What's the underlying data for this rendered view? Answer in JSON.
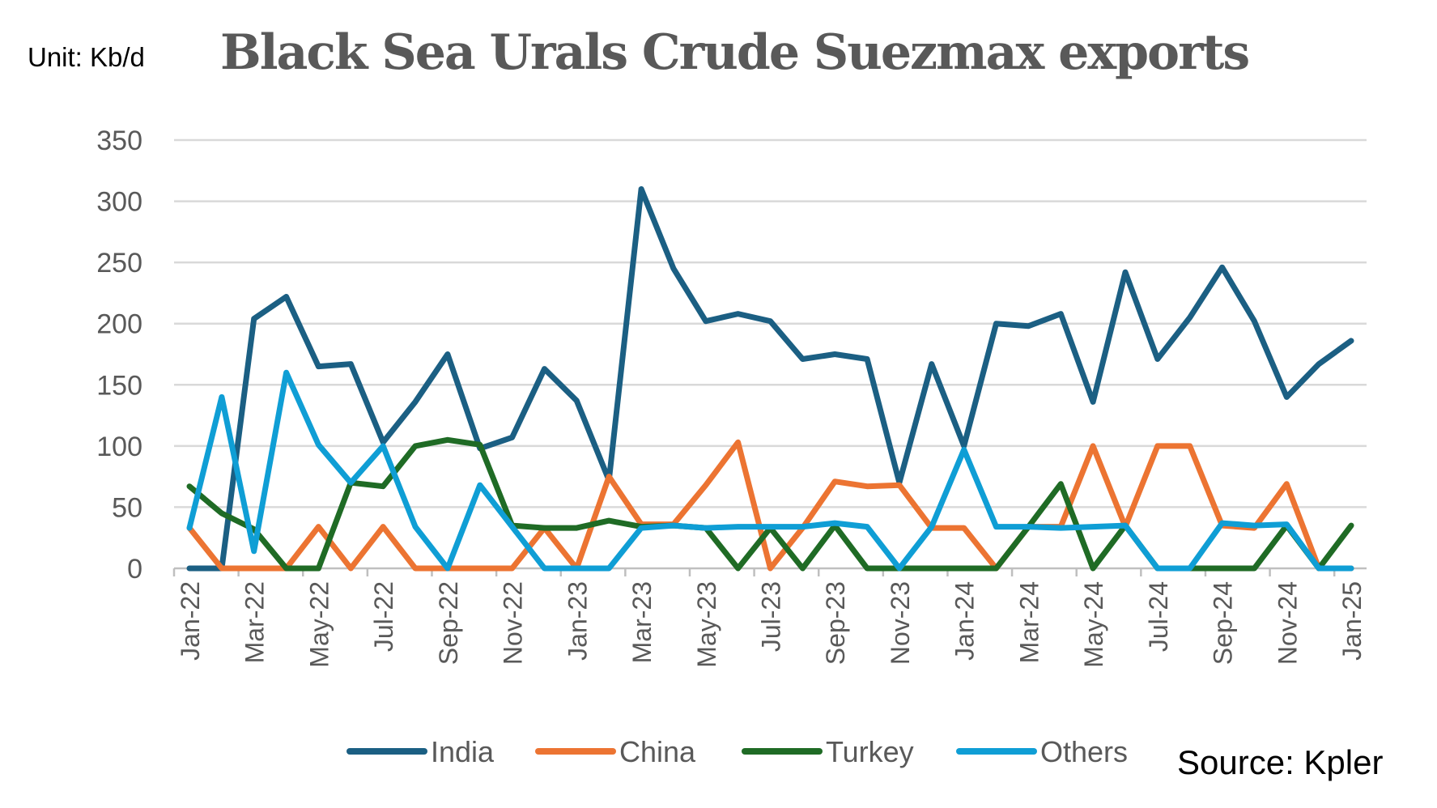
{
  "header": {
    "unit": "Unit: Kb/d",
    "source": "Source: Kpler"
  },
  "chart_data": {
    "type": "line",
    "title": "Black Sea Urals Crude Suezmax exports",
    "xlabel": "",
    "ylabel": "Kb/d",
    "ylim": [
      0,
      350
    ],
    "yticks": [
      0,
      50,
      100,
      150,
      200,
      250,
      300,
      350
    ],
    "grid": true,
    "legend_position": "bottom",
    "x": [
      "Jan-22",
      "Feb-22",
      "Mar-22",
      "Apr-22",
      "May-22",
      "Jun-22",
      "Jul-22",
      "Aug-22",
      "Sep-22",
      "Oct-22",
      "Nov-22",
      "Dec-22",
      "Jan-23",
      "Feb-23",
      "Mar-23",
      "Apr-23",
      "May-23",
      "Jun-23",
      "Jul-23",
      "Aug-23",
      "Sep-23",
      "Oct-23",
      "Nov-23",
      "Dec-23",
      "Jan-24",
      "Feb-24",
      "Mar-24",
      "Apr-24",
      "May-24",
      "Jun-24",
      "Jul-24",
      "Aug-24",
      "Sep-24",
      "Oct-24",
      "Nov-24",
      "Dec-24",
      "Jan-25"
    ],
    "xtick_labels": [
      "Jan-22",
      "Mar-22",
      "May-22",
      "Jul-22",
      "Sep-22",
      "Nov-22",
      "Jan-23",
      "Mar-23",
      "May-23",
      "Jul-23",
      "Sep-23",
      "Nov-23",
      "Jan-24",
      "Mar-24",
      "May-24",
      "Jul-24",
      "Sep-24",
      "Nov-24",
      "Jan-25"
    ],
    "series": [
      {
        "name": "India",
        "color": "#1b5f83",
        "values": [
          0,
          0,
          204,
          222,
          165,
          167,
          103,
          136,
          175,
          98,
          107,
          163,
          137,
          72,
          310,
          245,
          202,
          208,
          202,
          171,
          175,
          171,
          70,
          167,
          100,
          200,
          198,
          208,
          136,
          242,
          171,
          205,
          246,
          202,
          140,
          167,
          186
        ]
      },
      {
        "name": "China",
        "color": "#ec7432",
        "values": [
          33,
          0,
          0,
          0,
          34,
          0,
          34,
          0,
          0,
          0,
          0,
          33,
          0,
          75,
          36,
          36,
          68,
          103,
          0,
          33,
          71,
          67,
          68,
          33,
          33,
          0,
          34,
          34,
          100,
          34,
          100,
          100,
          35,
          33,
          69,
          0,
          0
        ]
      },
      {
        "name": "Turkey",
        "color": "#1f6b25",
        "values": [
          67,
          45,
          32,
          0,
          0,
          70,
          67,
          100,
          105,
          101,
          35,
          33,
          33,
          39,
          34,
          35,
          33,
          0,
          33,
          0,
          35,
          0,
          0,
          0,
          0,
          0,
          34,
          69,
          0,
          35,
          0,
          0,
          0,
          0,
          35,
          0,
          35
        ]
      },
      {
        "name": "Others",
        "color": "#0f9ed5",
        "values": [
          33,
          140,
          14,
          160,
          101,
          70,
          100,
          34,
          0,
          68,
          34,
          0,
          0,
          0,
          33,
          35,
          33,
          34,
          34,
          34,
          37,
          34,
          0,
          34,
          97,
          34,
          34,
          33,
          34,
          35,
          0,
          0,
          37,
          35,
          36,
          0,
          0
        ]
      }
    ]
  }
}
